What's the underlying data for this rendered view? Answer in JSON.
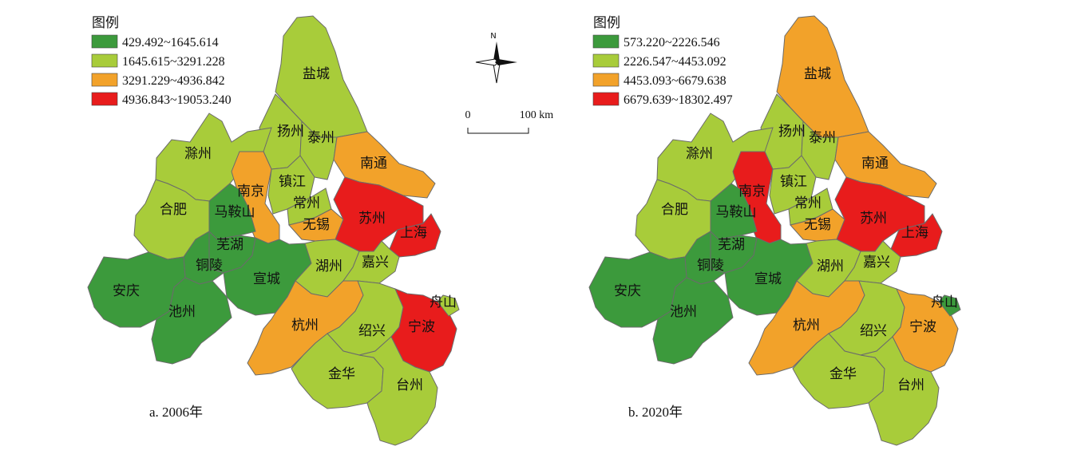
{
  "colors": {
    "class1": "#3c9a3c",
    "class2": "#a8cc3a",
    "class3": "#f2a22a",
    "class4": "#e81c1c",
    "border": "#6b6b6b"
  },
  "compass": {
    "north_label": "N"
  },
  "scale_bar": {
    "start_label": "0",
    "end_label": "100 km"
  },
  "panels": [
    {
      "caption": "a. 2006年",
      "legend": {
        "title": "图例",
        "entries": [
          "429.492~1645.614",
          "1645.615~3291.228",
          "3291.229~4936.842",
          "4936.843~19053.240"
        ]
      },
      "city_class": {
        "盐城": 2,
        "扬州": 2,
        "泰州": 2,
        "南通": 3,
        "滁州": 2,
        "南京": 3,
        "镇江": 2,
        "常州": 2,
        "无锡": 3,
        "苏州": 4,
        "上海": 4,
        "合肥": 2,
        "马鞍山": 1,
        "芜湖": 1,
        "铜陵": 1,
        "宣城": 1,
        "安庆": 1,
        "池州": 1,
        "湖州": 2,
        "嘉兴": 2,
        "杭州": 3,
        "绍兴": 2,
        "宁波": 4,
        "舟山": 2,
        "金华": 2,
        "台州": 2
      }
    },
    {
      "caption": "b. 2020年",
      "legend": {
        "title": "图例",
        "entries": [
          "573.220~2226.546",
          "2226.547~4453.092",
          "4453.093~6679.638",
          "6679.639~18302.497"
        ]
      },
      "city_class": {
        "盐城": 3,
        "扬州": 2,
        "泰州": 2,
        "南通": 3,
        "滁州": 2,
        "南京": 4,
        "镇江": 2,
        "常州": 2,
        "无锡": 3,
        "苏州": 4,
        "上海": 4,
        "合肥": 2,
        "马鞍山": 1,
        "芜湖": 1,
        "铜陵": 1,
        "宣城": 1,
        "安庆": 1,
        "池州": 1,
        "湖州": 2,
        "嘉兴": 2,
        "杭州": 3,
        "绍兴": 2,
        "宁波": 3,
        "舟山": 1,
        "金华": 2,
        "台州": 2
      }
    }
  ]
}
